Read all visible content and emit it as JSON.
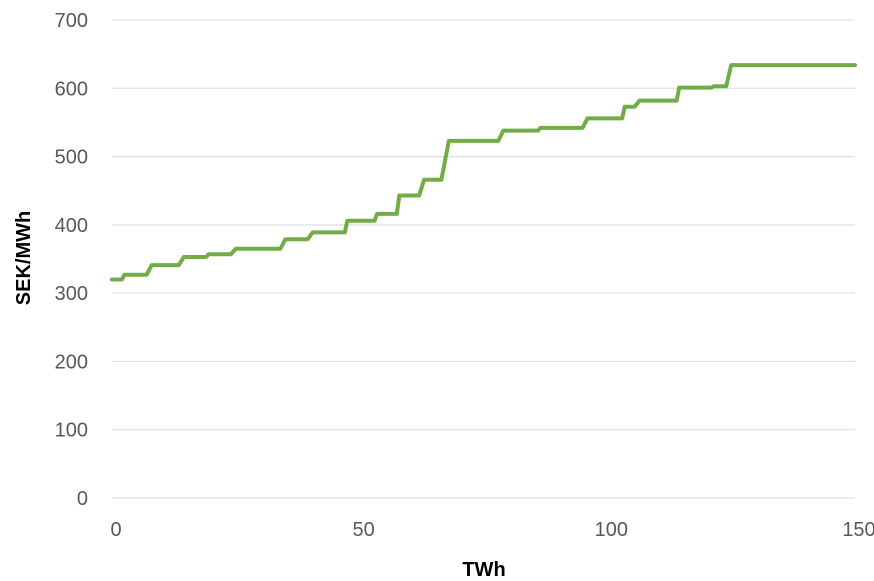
{
  "chart_data": {
    "type": "line",
    "title": "",
    "xlabel": "TWh",
    "ylabel": "SEK/MWh",
    "xlim": [
      0,
      150
    ],
    "ylim": [
      0,
      700
    ],
    "x_ticks": [
      0,
      50,
      100,
      150
    ],
    "y_ticks": [
      0,
      100,
      200,
      300,
      400,
      500,
      600,
      700
    ],
    "grid": true,
    "legend": "none",
    "series": [
      {
        "color": "#70ad47",
        "x": [
          0,
          2,
          2.5,
          7,
          8,
          13.5,
          14.5,
          19,
          19.5,
          24,
          25,
          34,
          35,
          39.5,
          40.5,
          47,
          47.5,
          53,
          53.5,
          57.5,
          58,
          62,
          63,
          66.5,
          68,
          78,
          79,
          86,
          86.5,
          95,
          96,
          103,
          103.5,
          105.5,
          106.5,
          114,
          114.5,
          121,
          121.5,
          124,
          125,
          150
        ],
        "y": [
          320,
          320,
          327,
          327,
          341,
          341,
          353,
          353,
          357,
          357,
          365,
          365,
          379,
          379,
          389,
          389,
          406,
          406,
          416,
          416,
          443,
          443,
          466,
          466,
          523,
          523,
          538,
          538,
          542,
          542,
          556,
          556,
          573,
          573,
          582,
          582,
          601,
          601,
          603,
          603,
          634,
          634
        ]
      }
    ]
  }
}
